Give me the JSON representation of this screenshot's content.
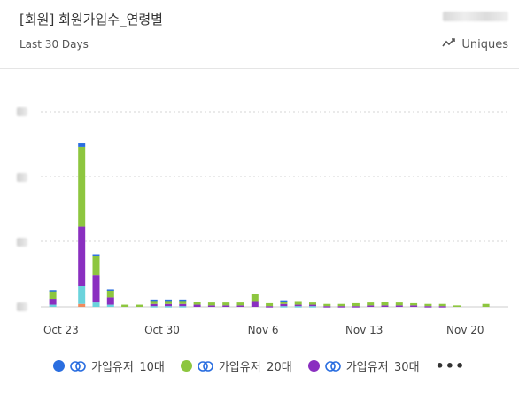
{
  "header": {
    "title": "[회원] 회원가입수_연령별",
    "subtitle": "Last 30 Days",
    "metric_label": "Uniques"
  },
  "chart_data": {
    "type": "bar",
    "stacked": true,
    "x": [
      "Oct 20",
      "Oct 21",
      "Oct 22",
      "Oct 23",
      "Oct 24",
      "Oct 25",
      "Oct 26",
      "Oct 27",
      "Oct 28",
      "Oct 29",
      "Oct 30",
      "Oct 31",
      "Nov 1",
      "Nov 2",
      "Nov 3",
      "Nov 4",
      "Nov 5",
      "Nov 6",
      "Nov 7",
      "Nov 8",
      "Nov 9",
      "Nov 10",
      "Nov 11",
      "Nov 12",
      "Nov 13",
      "Nov 14",
      "Nov 15",
      "Nov 16",
      "Nov 17",
      "Nov 18",
      "Nov 19",
      "Nov 20",
      "Nov 21"
    ],
    "x_tick_labels": [
      "Oct 23",
      "Oct 30",
      "Nov 6",
      "Nov 13",
      "Nov 20"
    ],
    "x_tick_indices": [
      3,
      10,
      17,
      24,
      31
    ],
    "ylim": [
      0,
      270
    ],
    "grid": true,
    "series": [
      {
        "name": "",
        "color": "#f08a5d",
        "values": [
          0,
          0,
          0,
          0,
          4,
          0,
          0,
          0,
          0,
          0,
          0,
          0,
          0,
          0,
          0,
          0,
          0,
          0,
          0,
          0,
          0,
          0,
          0,
          0,
          0,
          0,
          0,
          0,
          0,
          0,
          0,
          0,
          0
        ]
      },
      {
        "name": "",
        "color": "#6ad3dc",
        "values": [
          0,
          0,
          3,
          0,
          25,
          6,
          3,
          0,
          0,
          1,
          1,
          1,
          0,
          0,
          0,
          0,
          0,
          0,
          1,
          1,
          1,
          0,
          0,
          0,
          0,
          0,
          0,
          0,
          0,
          0,
          0,
          0,
          0
        ]
      },
      {
        "name": "가입유저_30대",
        "color": "#8a2fc0",
        "values": [
          0,
          0,
          8,
          0,
          82,
          38,
          10,
          0,
          0,
          3,
          3,
          3,
          3,
          2,
          2,
          2,
          8,
          1,
          3,
          2,
          2,
          1,
          1,
          1,
          2,
          2,
          2,
          2,
          1,
          1,
          0,
          0,
          0
        ]
      },
      {
        "name": "가입유저_20대",
        "color": "#8dc63f",
        "values": [
          0,
          0,
          11,
          0,
          110,
          26,
          10,
          3,
          3,
          5,
          5,
          5,
          4,
          4,
          4,
          4,
          10,
          4,
          4,
          5,
          3,
          3,
          3,
          4,
          4,
          5,
          4,
          3,
          3,
          3,
          2,
          0,
          4
        ]
      },
      {
        "name": "가입유저_10대",
        "color": "#2a6ee0",
        "values": [
          0,
          0,
          1,
          0,
          6,
          3,
          1,
          0,
          0,
          1,
          1,
          1,
          0,
          0,
          0,
          0,
          0,
          0,
          1,
          0,
          0,
          0,
          0,
          0,
          0,
          0,
          0,
          0,
          0,
          0,
          0,
          0,
          0
        ]
      }
    ]
  },
  "legend": {
    "items": [
      {
        "label": "가입유저_10대",
        "color": "#2a6ee0"
      },
      {
        "label": "가입유저_20대",
        "color": "#8dc63f"
      },
      {
        "label": "가입유저_30대",
        "color": "#8a2fc0"
      }
    ],
    "more_label": "•••"
  }
}
